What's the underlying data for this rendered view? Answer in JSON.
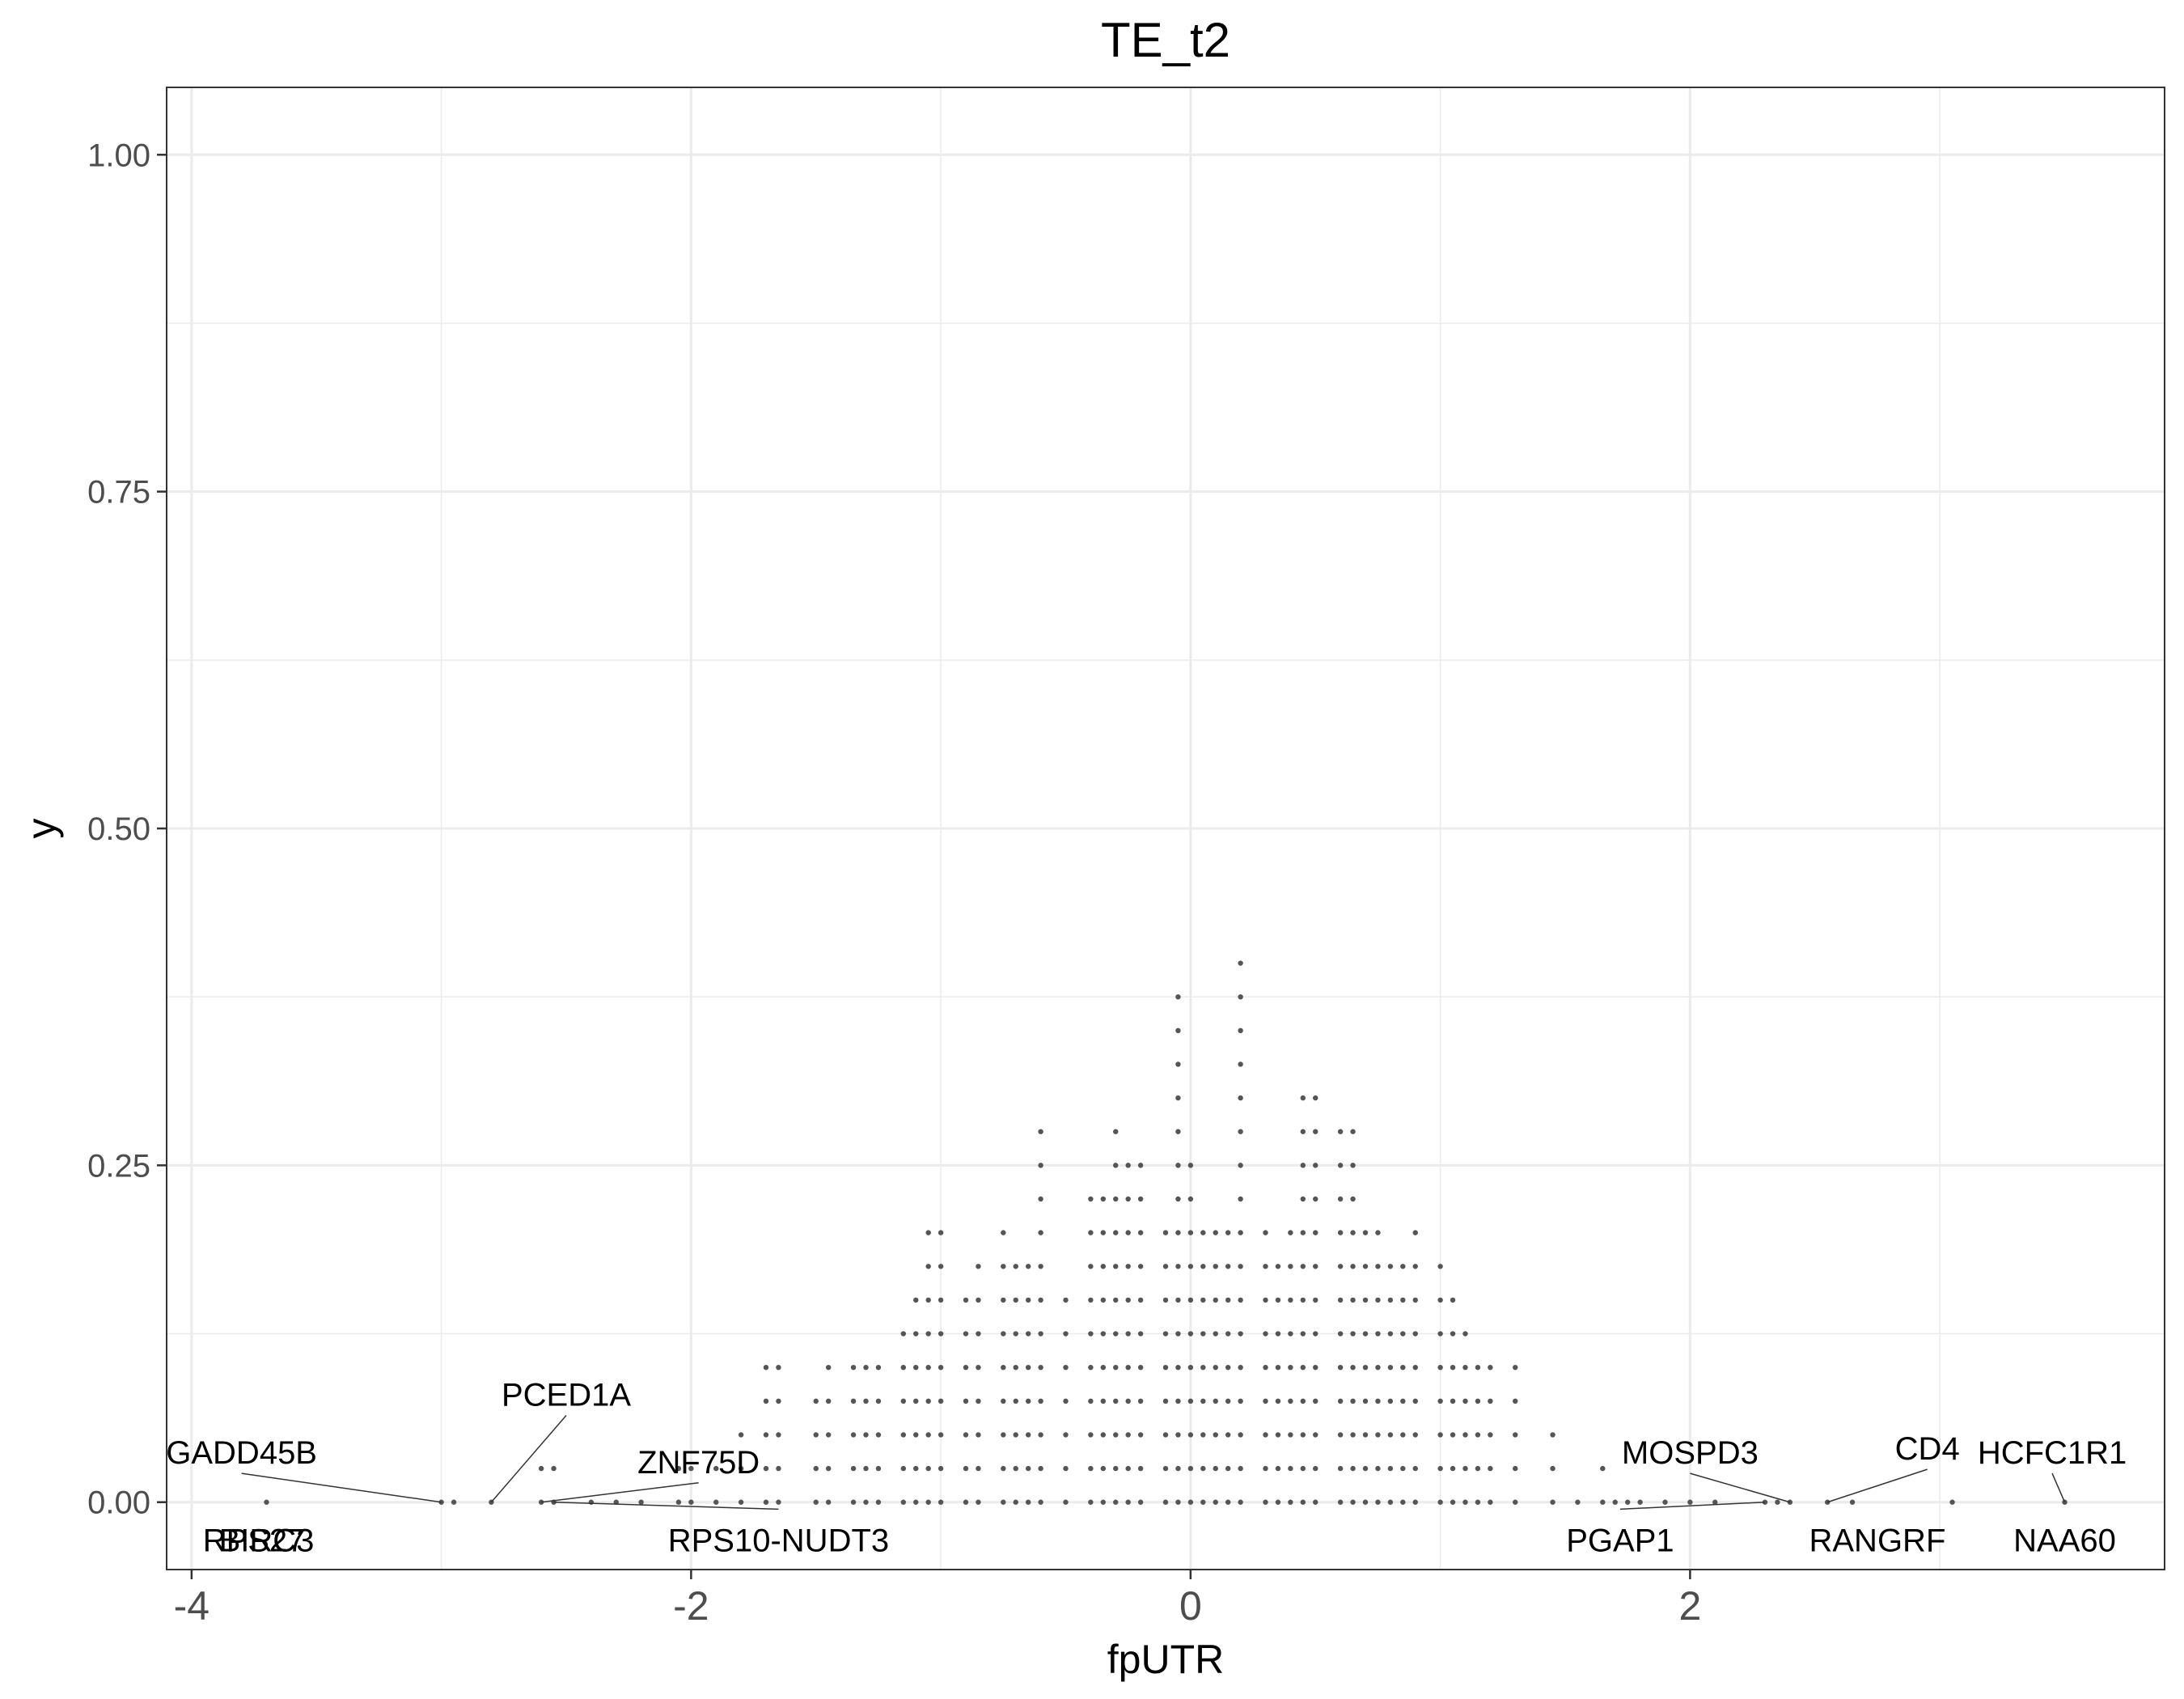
{
  "chart_data": {
    "type": "scatter",
    "title": "TE_t2",
    "xlabel": "fpUTR",
    "ylabel": "y",
    "xlim": [
      -4.1,
      3.9
    ],
    "ylim": [
      -0.05,
      1.05
    ],
    "x_ticks": [
      -4,
      -2,
      0,
      2
    ],
    "x_tick_labels": [
      "-4",
      "-2",
      "0",
      "2"
    ],
    "y_ticks": [
      0,
      0.25,
      0.5,
      0.75,
      1.0
    ],
    "y_tick_labels": [
      "0.00",
      "0.25",
      "0.50",
      "0.75",
      "1.00"
    ],
    "grid": true,
    "point_color": "#555555",
    "dot_bin_width": 0.1,
    "dot_step": 0.025,
    "stacks": [
      {
        "x": -3.7,
        "n": 1
      },
      {
        "x": -3.0,
        "n": 1
      },
      {
        "x": -2.95,
        "n": 1
      },
      {
        "x": -2.8,
        "n": 1
      },
      {
        "x": -2.6,
        "n": 2
      },
      {
        "x": -2.55,
        "n": 2
      },
      {
        "x": -2.4,
        "n": 1
      },
      {
        "x": -2.3,
        "n": 1
      },
      {
        "x": -2.2,
        "n": 1
      },
      {
        "x": -2.05,
        "n": 2
      },
      {
        "x": -2.0,
        "n": 2
      },
      {
        "x": -1.9,
        "n": 2
      },
      {
        "x": -1.8,
        "n": 3
      },
      {
        "x": -1.7,
        "n": 5
      },
      {
        "x": -1.65,
        "n": 5
      },
      {
        "x": -1.5,
        "n": 4
      },
      {
        "x": -1.45,
        "n": 5
      },
      {
        "x": -1.35,
        "n": 5
      },
      {
        "x": -1.3,
        "n": 5
      },
      {
        "x": -1.25,
        "n": 5
      },
      {
        "x": -1.15,
        "n": 6
      },
      {
        "x": -1.1,
        "n": 7
      },
      {
        "x": -1.05,
        "n": 9
      },
      {
        "x": -1.0,
        "n": 9
      },
      {
        "x": -0.9,
        "n": 7
      },
      {
        "x": -0.85,
        "n": 8
      },
      {
        "x": -0.75,
        "n": 9
      },
      {
        "x": -0.7,
        "n": 8
      },
      {
        "x": -0.65,
        "n": 8
      },
      {
        "x": -0.6,
        "n": 12
      },
      {
        "x": -0.5,
        "n": 7
      },
      {
        "x": -0.4,
        "n": 10
      },
      {
        "x": -0.35,
        "n": 10
      },
      {
        "x": -0.3,
        "n": 12
      },
      {
        "x": -0.25,
        "n": 11
      },
      {
        "x": -0.2,
        "n": 11
      },
      {
        "x": -0.1,
        "n": 9
      },
      {
        "x": -0.05,
        "n": 16
      },
      {
        "x": 0.0,
        "n": 11
      },
      {
        "x": 0.05,
        "n": 9
      },
      {
        "x": 0.1,
        "n": 9
      },
      {
        "x": 0.15,
        "n": 9
      },
      {
        "x": 0.2,
        "n": 17
      },
      {
        "x": 0.3,
        "n": 9
      },
      {
        "x": 0.35,
        "n": 8
      },
      {
        "x": 0.4,
        "n": 9
      },
      {
        "x": 0.45,
        "n": 13
      },
      {
        "x": 0.5,
        "n": 13
      },
      {
        "x": 0.6,
        "n": 12
      },
      {
        "x": 0.65,
        "n": 12
      },
      {
        "x": 0.7,
        "n": 9
      },
      {
        "x": 0.75,
        "n": 9
      },
      {
        "x": 0.8,
        "n": 8
      },
      {
        "x": 0.85,
        "n": 8
      },
      {
        "x": 0.9,
        "n": 9
      },
      {
        "x": 1.0,
        "n": 8
      },
      {
        "x": 1.05,
        "n": 7
      },
      {
        "x": 1.1,
        "n": 6
      },
      {
        "x": 1.15,
        "n": 5
      },
      {
        "x": 1.2,
        "n": 5
      },
      {
        "x": 1.3,
        "n": 5
      },
      {
        "x": 1.45,
        "n": 3
      },
      {
        "x": 1.55,
        "n": 1
      },
      {
        "x": 1.65,
        "n": 2
      },
      {
        "x": 1.7,
        "n": 1
      },
      {
        "x": 1.75,
        "n": 1
      },
      {
        "x": 1.8,
        "n": 1
      },
      {
        "x": 1.9,
        "n": 1
      },
      {
        "x": 2.0,
        "n": 1
      },
      {
        "x": 2.1,
        "n": 1
      },
      {
        "x": 2.3,
        "n": 1
      },
      {
        "x": 2.35,
        "n": 1
      },
      {
        "x": 2.4,
        "n": 1
      },
      {
        "x": 2.55,
        "n": 1
      },
      {
        "x": 2.65,
        "n": 1
      },
      {
        "x": 3.05,
        "n": 1
      },
      {
        "x": 3.5,
        "n": 1
      }
    ],
    "labels": [
      {
        "text": "RPS27",
        "x": -3.7,
        "y": 0.0,
        "dx": -0.05,
        "dy": -0.028,
        "line": false
      },
      {
        "text": "BIRC3",
        "x": -3.6,
        "y": 0.0,
        "dx": -0.1,
        "dy": -0.028,
        "line": false
      },
      {
        "text": "GADD45B",
        "x": -3.0,
        "y": 0.0,
        "dx": -0.8,
        "dy": 0.037,
        "line": true
      },
      {
        "text": "PCED1A",
        "x": -2.8,
        "y": 0.0,
        "dx": 0.3,
        "dy": 0.08,
        "line": true
      },
      {
        "text": "ZNF75D",
        "x": -2.6,
        "y": 0.0,
        "dx": 0.63,
        "dy": 0.03,
        "line": true
      },
      {
        "text": "RPS10-NUDT3",
        "x": -2.55,
        "y": 0.0,
        "dx": 0.9,
        "dy": -0.028,
        "line": true
      },
      {
        "text": "MOSPD3",
        "x": 2.4,
        "y": 0.0,
        "dx": -0.4,
        "dy": 0.037,
        "line": true
      },
      {
        "text": "PGAP1",
        "x": 2.3,
        "y": 0.0,
        "dx": -0.58,
        "dy": -0.028,
        "line": true
      },
      {
        "text": "CD4",
        "x": 2.55,
        "y": 0.0,
        "dx": 0.4,
        "dy": 0.04,
        "line": true
      },
      {
        "text": "RANGRF",
        "x": 3.05,
        "y": 0.0,
        "dx": -0.3,
        "dy": -0.028,
        "line": false
      },
      {
        "text": "NAA60",
        "x": 3.05,
        "y": 0.0,
        "dx": 0.45,
        "dy": -0.028,
        "line": false
      },
      {
        "text": "HCFC1R1",
        "x": 3.5,
        "y": 0.0,
        "dx": -0.05,
        "dy": 0.037,
        "line": true
      }
    ]
  }
}
